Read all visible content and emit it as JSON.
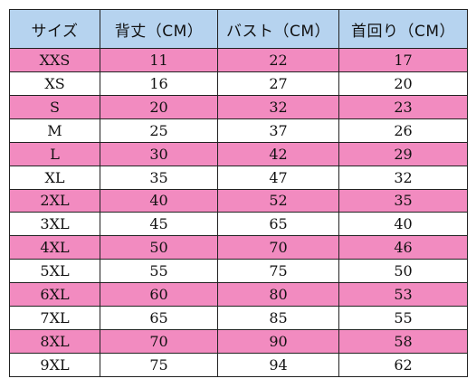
{
  "table": {
    "columns": [
      "サイズ",
      "背丈（CM）",
      "バスト（CM）",
      "首回り（CM）"
    ],
    "rows": [
      [
        "XXS",
        "11",
        "22",
        "17"
      ],
      [
        "XS",
        "16",
        "27",
        "20"
      ],
      [
        "S",
        "20",
        "32",
        "23"
      ],
      [
        "M",
        "25",
        "37",
        "26"
      ],
      [
        "L",
        "30",
        "42",
        "29"
      ],
      [
        "XL",
        "35",
        "47",
        "32"
      ],
      [
        "2XL",
        "40",
        "52",
        "35"
      ],
      [
        "3XL",
        "45",
        "65",
        "40"
      ],
      [
        "4XL",
        "50",
        "70",
        "46"
      ],
      [
        "5XL",
        "55",
        "75",
        "50"
      ],
      [
        "6XL",
        "60",
        "80",
        "53"
      ],
      [
        "7XL",
        "65",
        "85",
        "55"
      ],
      [
        "8XL",
        "70",
        "90",
        "58"
      ],
      [
        "9XL",
        "75",
        "94",
        "62"
      ]
    ]
  },
  "colors": {
    "header_background": "#b6d3ef",
    "stripe_pink": "#f28bc0",
    "stripe_white": "#ffffff",
    "border": "#222222"
  }
}
